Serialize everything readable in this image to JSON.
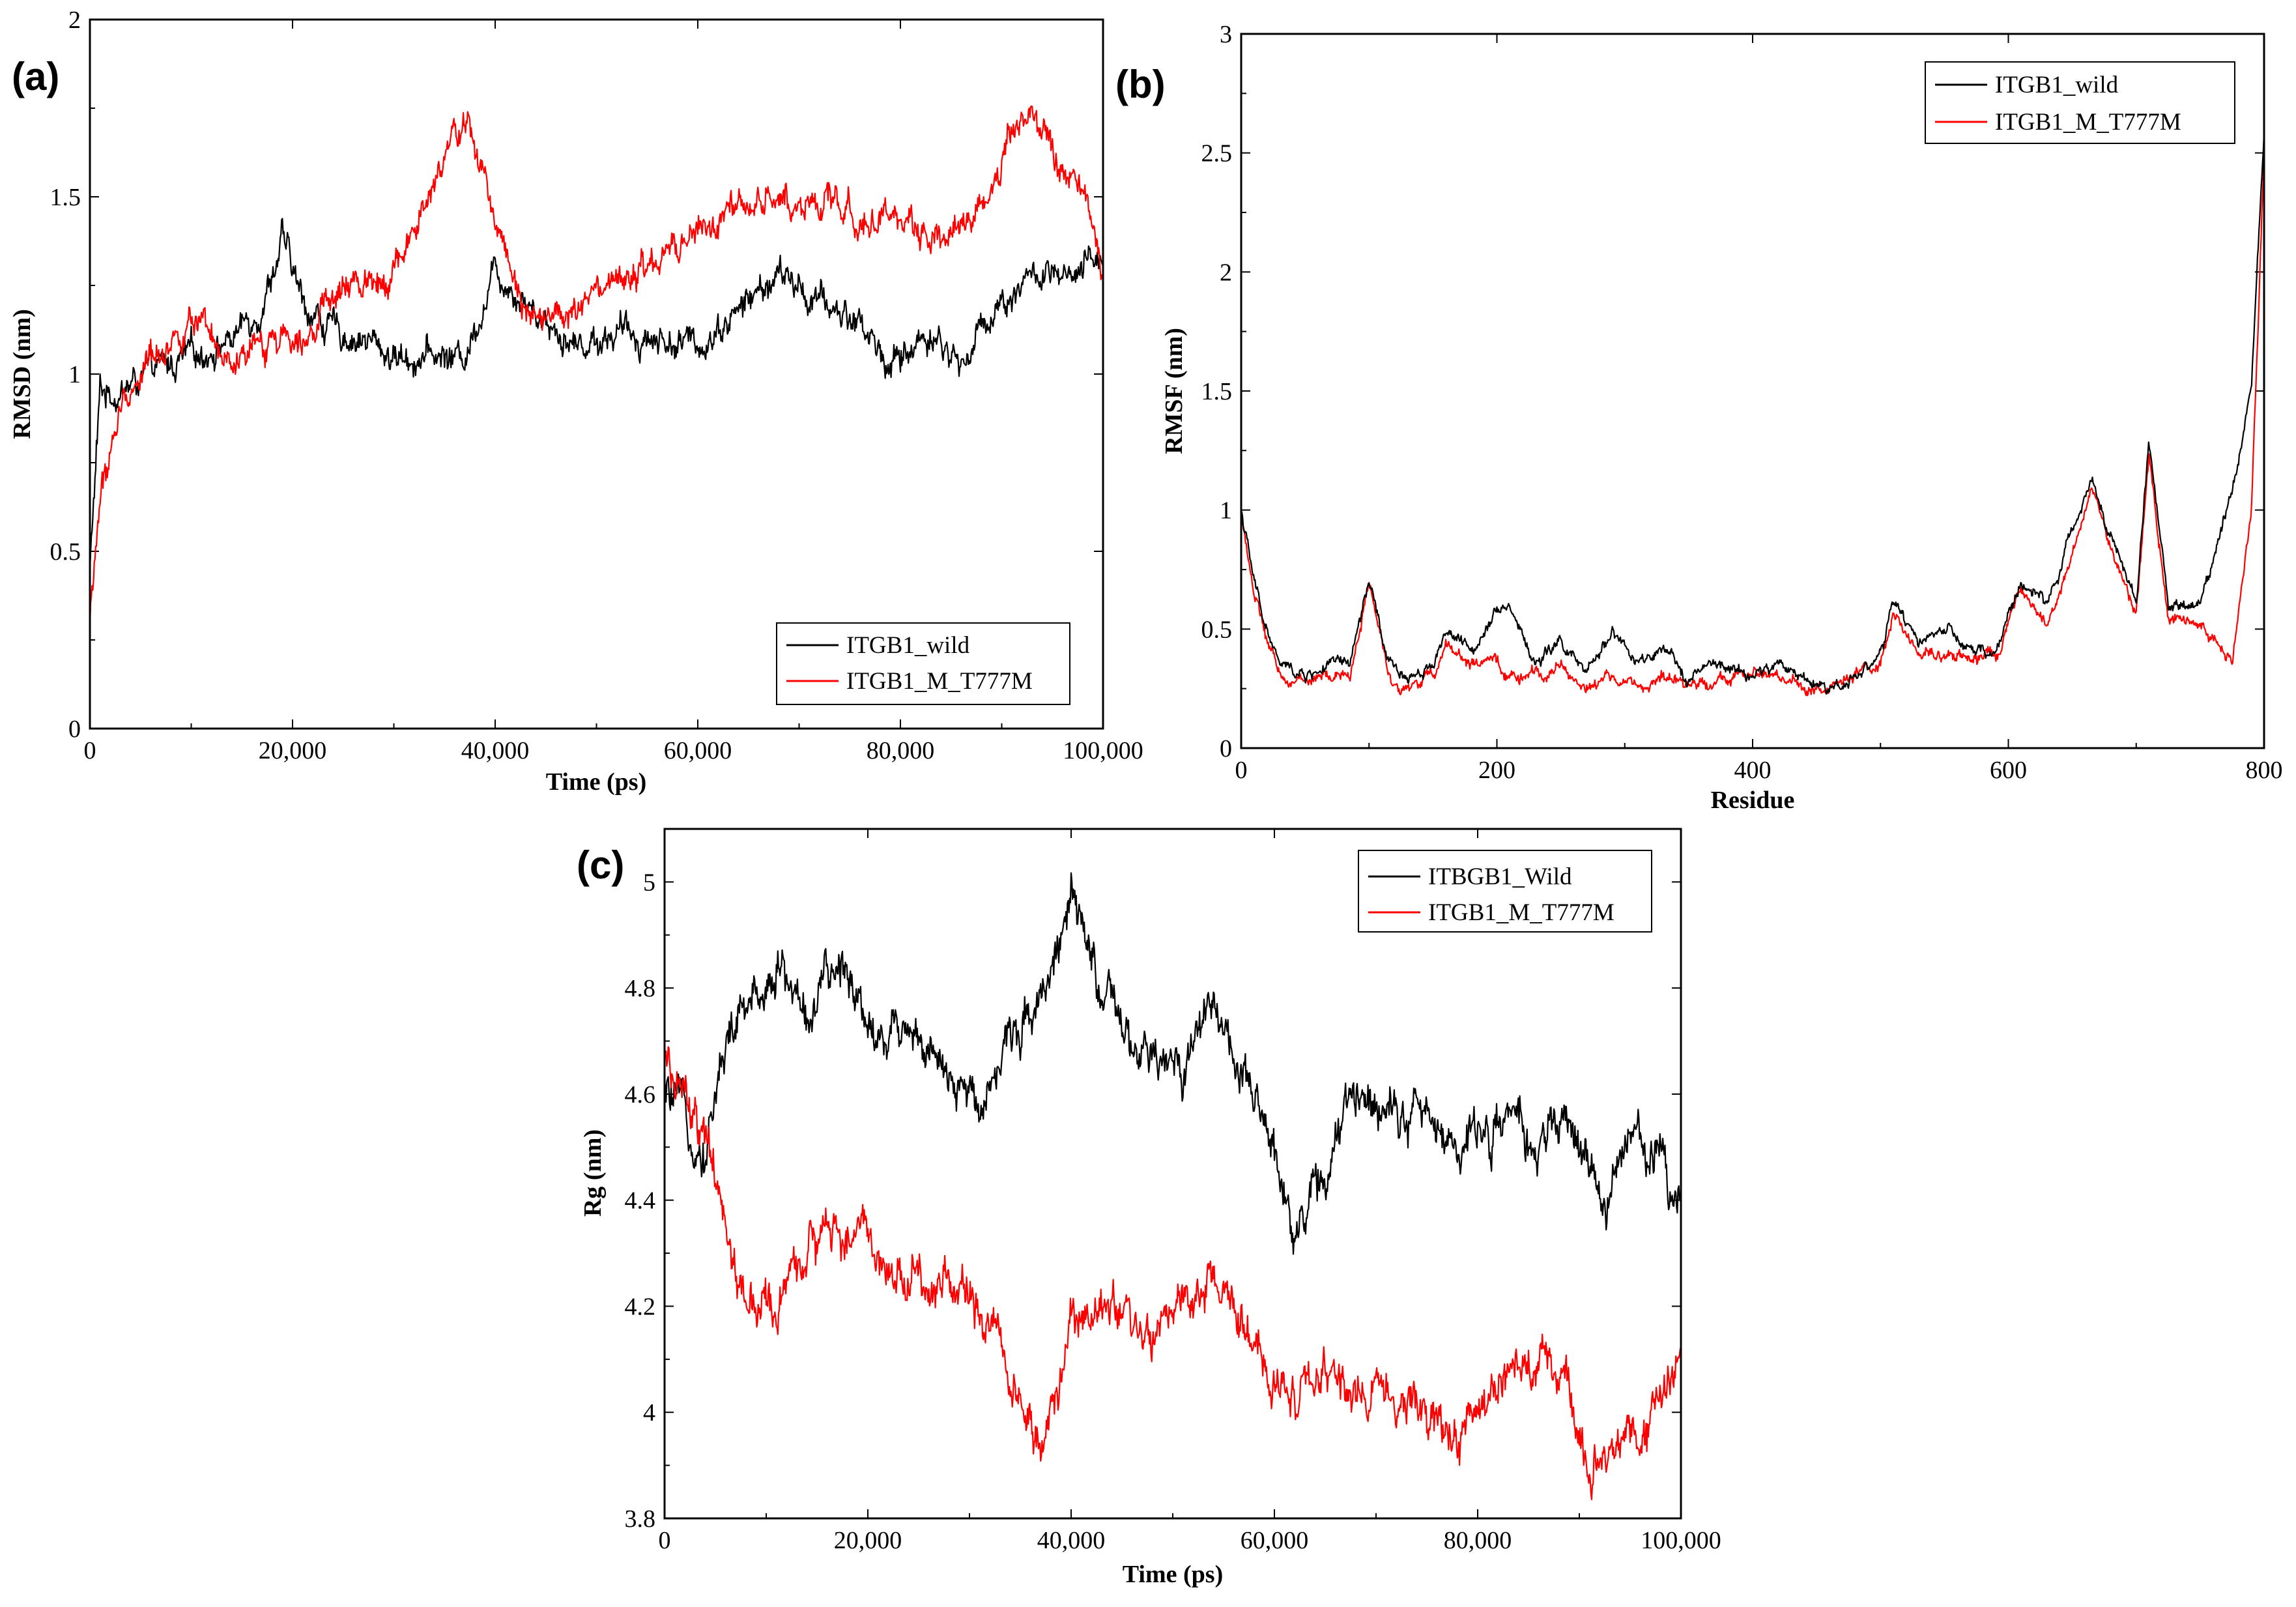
{
  "colors": {
    "wild": "#000000",
    "mutant": "#ff0000"
  },
  "chart_data": [
    {
      "id": "a",
      "type": "line",
      "panel_label": "(a)",
      "title": "",
      "xlabel": "Time (ps)",
      "ylabel": "RMSD (nm)",
      "xlim": [
        0,
        100000
      ],
      "ylim": [
        0,
        2
      ],
      "xticks": [
        0,
        20000,
        40000,
        60000,
        80000,
        100000
      ],
      "xtick_labels": [
        "0",
        "20,000",
        "40,000",
        "60,000",
        "80,000",
        "100,000"
      ],
      "yticks": [
        0,
        0.5,
        1,
        1.5,
        2
      ],
      "ytick_labels": [
        "0",
        "0.5",
        "1",
        "1.5",
        "2"
      ],
      "legend_position": "bottom-right",
      "noise": 0.05,
      "series": [
        {
          "name": "ITGB1_wild",
          "color_key": "wild",
          "x": [
            0,
            1000,
            3000,
            6000,
            10000,
            14000,
            17000,
            19000,
            21000,
            24000,
            27000,
            30000,
            34000,
            37000,
            40000,
            44000,
            48000,
            52000,
            56000,
            60000,
            64000,
            68000,
            72000,
            76000,
            79000,
            83000,
            86000,
            89000,
            93000,
            97000,
            100000
          ],
          "values": [
            0.45,
            0.95,
            0.95,
            1.0,
            1.05,
            1.1,
            1.2,
            1.38,
            1.2,
            1.12,
            1.1,
            1.05,
            1.05,
            1.05,
            1.3,
            1.18,
            1.08,
            1.12,
            1.1,
            1.08,
            1.18,
            1.28,
            1.2,
            1.15,
            1.02,
            1.12,
            1.02,
            1.18,
            1.28,
            1.25,
            1.35
          ]
        },
        {
          "name": "ITGB1_M_T777M",
          "color_key": "mutant",
          "x": [
            0,
            1000,
            3000,
            6000,
            10000,
            14000,
            18000,
            22000,
            26000,
            30000,
            33000,
            35000,
            37000,
            40000,
            43000,
            47000,
            52000,
            56000,
            60000,
            64000,
            68000,
            72000,
            76000,
            80000,
            84000,
            88000,
            91000,
            93000,
            95000,
            98000,
            100000
          ],
          "values": [
            0.3,
            0.65,
            0.9,
            1.05,
            1.15,
            1.0,
            1.1,
            1.15,
            1.25,
            1.3,
            1.45,
            1.6,
            1.72,
            1.45,
            1.2,
            1.15,
            1.25,
            1.3,
            1.4,
            1.45,
            1.5,
            1.48,
            1.45,
            1.42,
            1.4,
            1.45,
            1.7,
            1.75,
            1.6,
            1.5,
            1.3
          ]
        }
      ]
    },
    {
      "id": "b",
      "type": "line",
      "panel_label": "(b)",
      "title": "",
      "xlabel": "Residue",
      "ylabel": "RMSF (nm)",
      "xlim": [
        0,
        800
      ],
      "ylim": [
        0,
        3
      ],
      "xticks": [
        0,
        200,
        400,
        600,
        800
      ],
      "xtick_labels": [
        "0",
        "200",
        "400",
        "600",
        "800"
      ],
      "yticks": [
        0,
        0.5,
        1,
        1.5,
        2,
        2.5,
        3
      ],
      "ytick_labels": [
        "0",
        "0.5",
        "1",
        "1.5",
        "2",
        "2.5",
        "3"
      ],
      "legend_position": "top-right",
      "noise": 0.03,
      "series": [
        {
          "name": "ITGB1_wild",
          "color_key": "wild",
          "x": [
            0,
            10,
            20,
            30,
            50,
            70,
            85,
            100,
            115,
            130,
            150,
            160,
            180,
            200,
            210,
            230,
            250,
            270,
            290,
            310,
            330,
            350,
            370,
            400,
            420,
            440,
            460,
            480,
            500,
            510,
            530,
            550,
            570,
            590,
            610,
            630,
            650,
            665,
            680,
            700,
            710,
            725,
            750,
            775,
            790,
            800
          ],
          "values": [
            1.0,
            0.7,
            0.5,
            0.35,
            0.3,
            0.35,
            0.35,
            0.7,
            0.35,
            0.3,
            0.35,
            0.5,
            0.4,
            0.6,
            0.6,
            0.35,
            0.45,
            0.3,
            0.5,
            0.35,
            0.4,
            0.3,
            0.35,
            0.3,
            0.35,
            0.3,
            0.25,
            0.3,
            0.4,
            0.6,
            0.45,
            0.5,
            0.4,
            0.4,
            0.7,
            0.6,
            0.9,
            1.15,
            0.9,
            0.6,
            1.3,
            0.6,
            0.6,
            1.1,
            1.5,
            2.6
          ]
        },
        {
          "name": "ITGB1_M_T777M",
          "color_key": "mutant",
          "x": [
            0,
            10,
            20,
            30,
            50,
            70,
            85,
            100,
            115,
            130,
            150,
            160,
            180,
            200,
            210,
            230,
            250,
            270,
            290,
            310,
            330,
            350,
            370,
            400,
            420,
            440,
            460,
            480,
            500,
            510,
            530,
            550,
            570,
            590,
            610,
            630,
            650,
            665,
            680,
            700,
            710,
            725,
            750,
            765,
            775,
            790,
            800
          ],
          "values": [
            1.0,
            0.65,
            0.45,
            0.3,
            0.28,
            0.3,
            0.3,
            0.7,
            0.3,
            0.25,
            0.3,
            0.45,
            0.35,
            0.35,
            0.3,
            0.3,
            0.35,
            0.25,
            0.3,
            0.25,
            0.3,
            0.25,
            0.3,
            0.3,
            0.3,
            0.25,
            0.25,
            0.3,
            0.35,
            0.55,
            0.4,
            0.4,
            0.38,
            0.38,
            0.65,
            0.5,
            0.8,
            1.1,
            0.85,
            0.55,
            1.25,
            0.55,
            0.5,
            0.45,
            0.35,
            1.0,
            2.5
          ]
        }
      ]
    },
    {
      "id": "c",
      "type": "line",
      "panel_label": "(c)",
      "title": "",
      "xlabel": "Time (ps)",
      "ylabel": "Rg (nm)",
      "xlim": [
        0,
        100000
      ],
      "ylim": [
        3.8,
        5.1
      ],
      "xticks": [
        0,
        20000,
        40000,
        60000,
        80000,
        100000
      ],
      "xtick_labels": [
        "0",
        "20,000",
        "40,000",
        "60,000",
        "80,000",
        "100,000"
      ],
      "yticks": [
        3.8,
        4,
        4.2,
        4.4,
        4.6,
        4.8,
        5
      ],
      "ytick_labels": [
        "3.8",
        "4",
        "4.2",
        "4.4",
        "4.6",
        "4.8",
        "5"
      ],
      "legend_position": "top-right",
      "noise": 0.05,
      "series": [
        {
          "name": "ITBGB1_Wild",
          "color_key": "wild",
          "x": [
            0,
            2000,
            4000,
            6000,
            8000,
            11000,
            14000,
            18000,
            21000,
            24000,
            28000,
            31000,
            34000,
            37000,
            40000,
            42000,
            45000,
            48000,
            51000,
            54000,
            57000,
            60000,
            62000,
            65000,
            68000,
            71000,
            75000,
            78000,
            82000,
            86000,
            89000,
            92000,
            95000,
            98000,
            100000
          ],
          "values": [
            4.6,
            4.55,
            4.5,
            4.7,
            4.75,
            4.85,
            4.75,
            4.85,
            4.7,
            4.75,
            4.6,
            4.6,
            4.7,
            4.8,
            4.95,
            4.85,
            4.7,
            4.65,
            4.65,
            4.8,
            4.6,
            4.5,
            4.35,
            4.45,
            4.6,
            4.6,
            4.55,
            4.5,
            4.55,
            4.5,
            4.55,
            4.4,
            4.5,
            4.5,
            4.4
          ]
        },
        {
          "name": "ITGB1_M_T777M",
          "color_key": "mutant",
          "x": [
            0,
            2000,
            4000,
            6000,
            8000,
            11000,
            14000,
            18000,
            21000,
            24000,
            28000,
            31000,
            34000,
            37000,
            40000,
            44000,
            48000,
            52000,
            55000,
            57000,
            59000,
            62000,
            66000,
            70000,
            74000,
            78000,
            82000,
            86000,
            88000,
            91000,
            94000,
            98000,
            100000
          ],
          "values": [
            4.65,
            4.6,
            4.5,
            4.35,
            4.2,
            4.2,
            4.3,
            4.35,
            4.3,
            4.25,
            4.25,
            4.2,
            4.1,
            3.9,
            4.15,
            4.2,
            4.15,
            4.2,
            4.25,
            4.15,
            4.05,
            4.05,
            4.05,
            4.05,
            4.0,
            3.95,
            4.05,
            4.1,
            4.05,
            3.9,
            3.95,
            4.0,
            4.1
          ]
        }
      ]
    }
  ]
}
